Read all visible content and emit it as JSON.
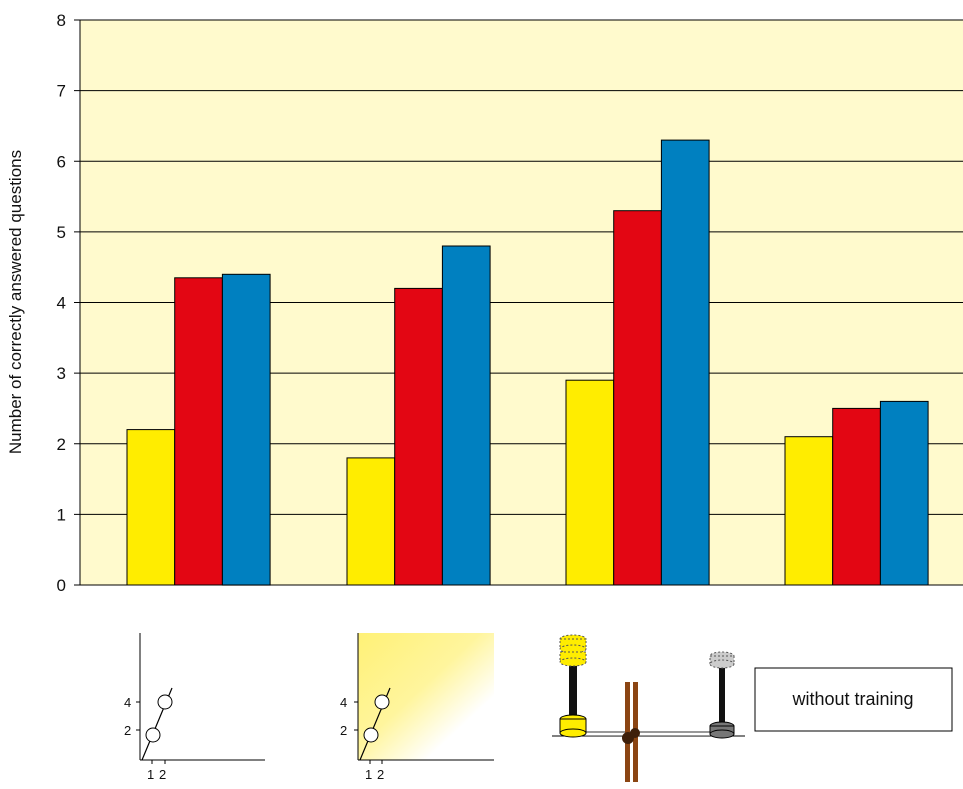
{
  "chart_data": {
    "type": "bar",
    "ylabel": "Number of correctly answered questions",
    "ylim": [
      0,
      8
    ],
    "yticks": [
      "0",
      "1",
      "2",
      "3",
      "4",
      "5",
      "6",
      "7",
      "8"
    ],
    "grid": true,
    "categories": [
      "",
      "",
      "",
      "without training"
    ],
    "series": [
      {
        "color": "#ffed00",
        "values": [
          2.2,
          1.8,
          2.9,
          2.1
        ]
      },
      {
        "color": "#e30613",
        "values": [
          4.35,
          4.2,
          5.3,
          2.5
        ]
      },
      {
        "color": "#0080c0",
        "values": [
          4.4,
          4.8,
          6.3,
          2.6
        ]
      }
    ],
    "icons": {
      "graph_ticks_y": [
        "4",
        "2"
      ],
      "graph_ticks_x": [
        "1",
        "2"
      ],
      "last_label": "without training"
    },
    "colors": {
      "plot_background": "#fffacd",
      "grid": "#000000"
    }
  }
}
